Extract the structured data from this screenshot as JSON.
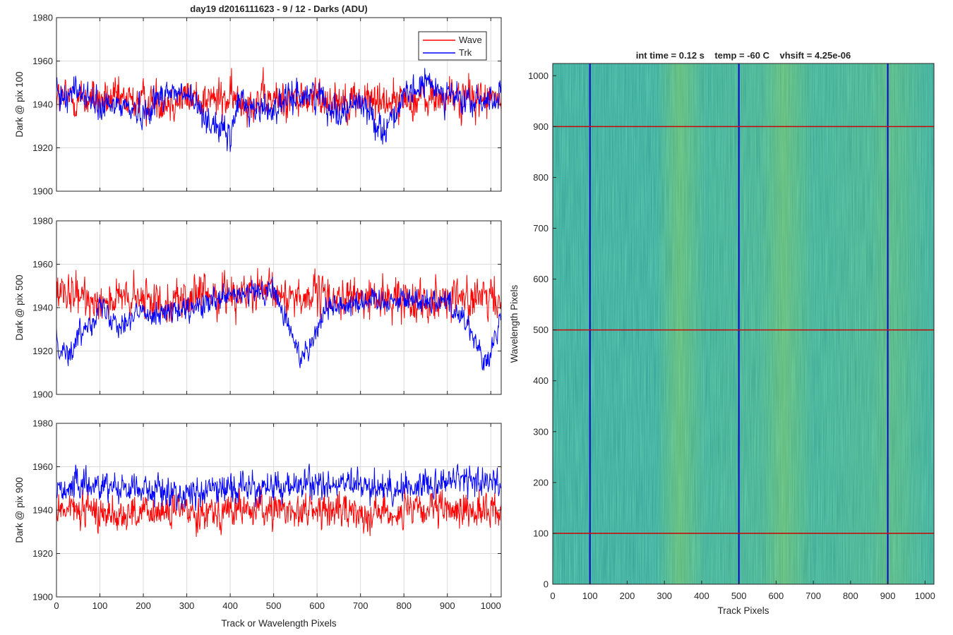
{
  "figure": {
    "title": "day19 d2016111623 - 9 / 12 - Darks (ADU)",
    "xlabel": "Track or Wavelength Pixels",
    "image_title": "int time = 0.12 s    temp = -60 C    vhsift = 4.25e-06"
  },
  "legend": {
    "entries": [
      "Wave",
      "Trk"
    ]
  },
  "chart_data": [
    {
      "type": "line",
      "title": "day19 d2016111623 - 9 / 12 - Darks (ADU)",
      "xlabel": "",
      "ylabel": "Dark @ pix 100",
      "xlim": [
        0,
        1024
      ],
      "ylim": [
        1900,
        1980
      ],
      "xticks": [
        "0",
        "100",
        "200",
        "300",
        "400",
        "500",
        "600",
        "700",
        "800",
        "900",
        "1000"
      ],
      "yticks": [
        "1900",
        "1920",
        "1940",
        "1960",
        "1980"
      ],
      "grid": true,
      "legend_position": "top-right",
      "series": [
        {
          "name": "Wave",
          "color": "#ff0000",
          "mean": 1943,
          "noise": 8,
          "x": [
            0,
            100,
            200,
            300,
            400,
            500,
            600,
            700,
            800,
            900,
            1024
          ],
          "trend": [
            1943,
            1942,
            1941,
            1943,
            1942,
            1942,
            1943,
            1942,
            1942,
            1943,
            1942
          ]
        },
        {
          "name": "Trk",
          "color": "#0000ff",
          "mean": 1940,
          "noise": 6,
          "x": [
            0,
            50,
            100,
            150,
            200,
            250,
            300,
            350,
            380,
            400,
            420,
            450,
            500,
            550,
            600,
            650,
            700,
            750,
            800,
            850,
            900,
            950,
            1024
          ],
          "trend": [
            1943,
            1947,
            1938,
            1940,
            1936,
            1946,
            1944,
            1933,
            1928,
            1924,
            1943,
            1938,
            1938,
            1944,
            1945,
            1936,
            1942,
            1928,
            1942,
            1950,
            1945,
            1940,
            1944
          ]
        }
      ]
    },
    {
      "type": "line",
      "ylabel": "Dark @ pix 500",
      "xlim": [
        0,
        1024
      ],
      "ylim": [
        1900,
        1980
      ],
      "xticks": [
        "0",
        "100",
        "200",
        "300",
        "400",
        "500",
        "600",
        "700",
        "800",
        "900",
        "1000"
      ],
      "yticks": [
        "1900",
        "1920",
        "1940",
        "1960",
        "1980"
      ],
      "grid": true,
      "series": [
        {
          "name": "Wave",
          "color": "#ff0000",
          "mean": 1944,
          "noise": 8,
          "x": [
            0,
            100,
            200,
            300,
            400,
            500,
            600,
            700,
            800,
            900,
            1024
          ],
          "trend": [
            1945,
            1944,
            1943,
            1944,
            1947,
            1946,
            1945,
            1944,
            1944,
            1945,
            1943
          ]
        },
        {
          "name": "Trk",
          "color": "#0000ff",
          "mean": 1938,
          "noise": 5,
          "x": [
            0,
            30,
            60,
            100,
            150,
            200,
            300,
            400,
            500,
            560,
            590,
            620,
            700,
            800,
            900,
            950,
            990,
            1024
          ],
          "trend": [
            1925,
            1918,
            1930,
            1940,
            1933,
            1938,
            1938,
            1945,
            1948,
            1918,
            1925,
            1940,
            1943,
            1944,
            1943,
            1932,
            1912,
            1935
          ]
        }
      ]
    },
    {
      "type": "line",
      "xlabel": "Track or Wavelength Pixels",
      "ylabel": "Dark @ pix 900",
      "xlim": [
        0,
        1024
      ],
      "ylim": [
        1900,
        1980
      ],
      "xticks": [
        "0",
        "100",
        "200",
        "300",
        "400",
        "500",
        "600",
        "700",
        "800",
        "900",
        "1000"
      ],
      "yticks": [
        "1900",
        "1920",
        "1940",
        "1960",
        "1980"
      ],
      "grid": true,
      "series": [
        {
          "name": "Wave",
          "color": "#ff0000",
          "mean": 1940,
          "noise": 7,
          "x": [
            0,
            100,
            200,
            300,
            400,
            500,
            600,
            700,
            800,
            900,
            1024
          ],
          "trend": [
            1941,
            1939,
            1938,
            1940,
            1940,
            1940,
            1940,
            1939,
            1939,
            1940,
            1940
          ]
        },
        {
          "name": "Trk",
          "color": "#0000ff",
          "mean": 1950,
          "noise": 6,
          "x": [
            0,
            100,
            200,
            300,
            400,
            500,
            600,
            700,
            800,
            900,
            1024
          ],
          "trend": [
            1950,
            1952,
            1950,
            1947,
            1951,
            1950,
            1952,
            1951,
            1950,
            1954,
            1953
          ]
        }
      ]
    },
    {
      "type": "heatmap",
      "title": "int time = 0.12 s    temp = -60 C    vhsift = 4.25e-06",
      "xlabel": "Track Pixels",
      "ylabel": "Wavelength Pixels",
      "xlim": [
        0,
        1024
      ],
      "ylim": [
        0,
        1024
      ],
      "xticks": [
        "0",
        "100",
        "200",
        "300",
        "400",
        "500",
        "600",
        "700",
        "800",
        "900",
        "1000"
      ],
      "yticks": [
        "0",
        "100",
        "200",
        "300",
        "400",
        "500",
        "600",
        "700",
        "800",
        "900",
        "1000"
      ],
      "colormap": "parula",
      "base_color": "#3aa79a",
      "bright_regions_x": [
        340,
        620,
        900
      ],
      "marker_lines": [
        {
          "orientation": "vertical",
          "value": 100,
          "color": "#0000cc"
        },
        {
          "orientation": "vertical",
          "value": 500,
          "color": "#0000cc"
        },
        {
          "orientation": "vertical",
          "value": 900,
          "color": "#0000cc"
        },
        {
          "orientation": "horizontal",
          "value": 100,
          "color": "#cc0000"
        },
        {
          "orientation": "horizontal",
          "value": 500,
          "color": "#cc0000"
        },
        {
          "orientation": "horizontal",
          "value": 900,
          "color": "#cc0000"
        }
      ]
    }
  ]
}
